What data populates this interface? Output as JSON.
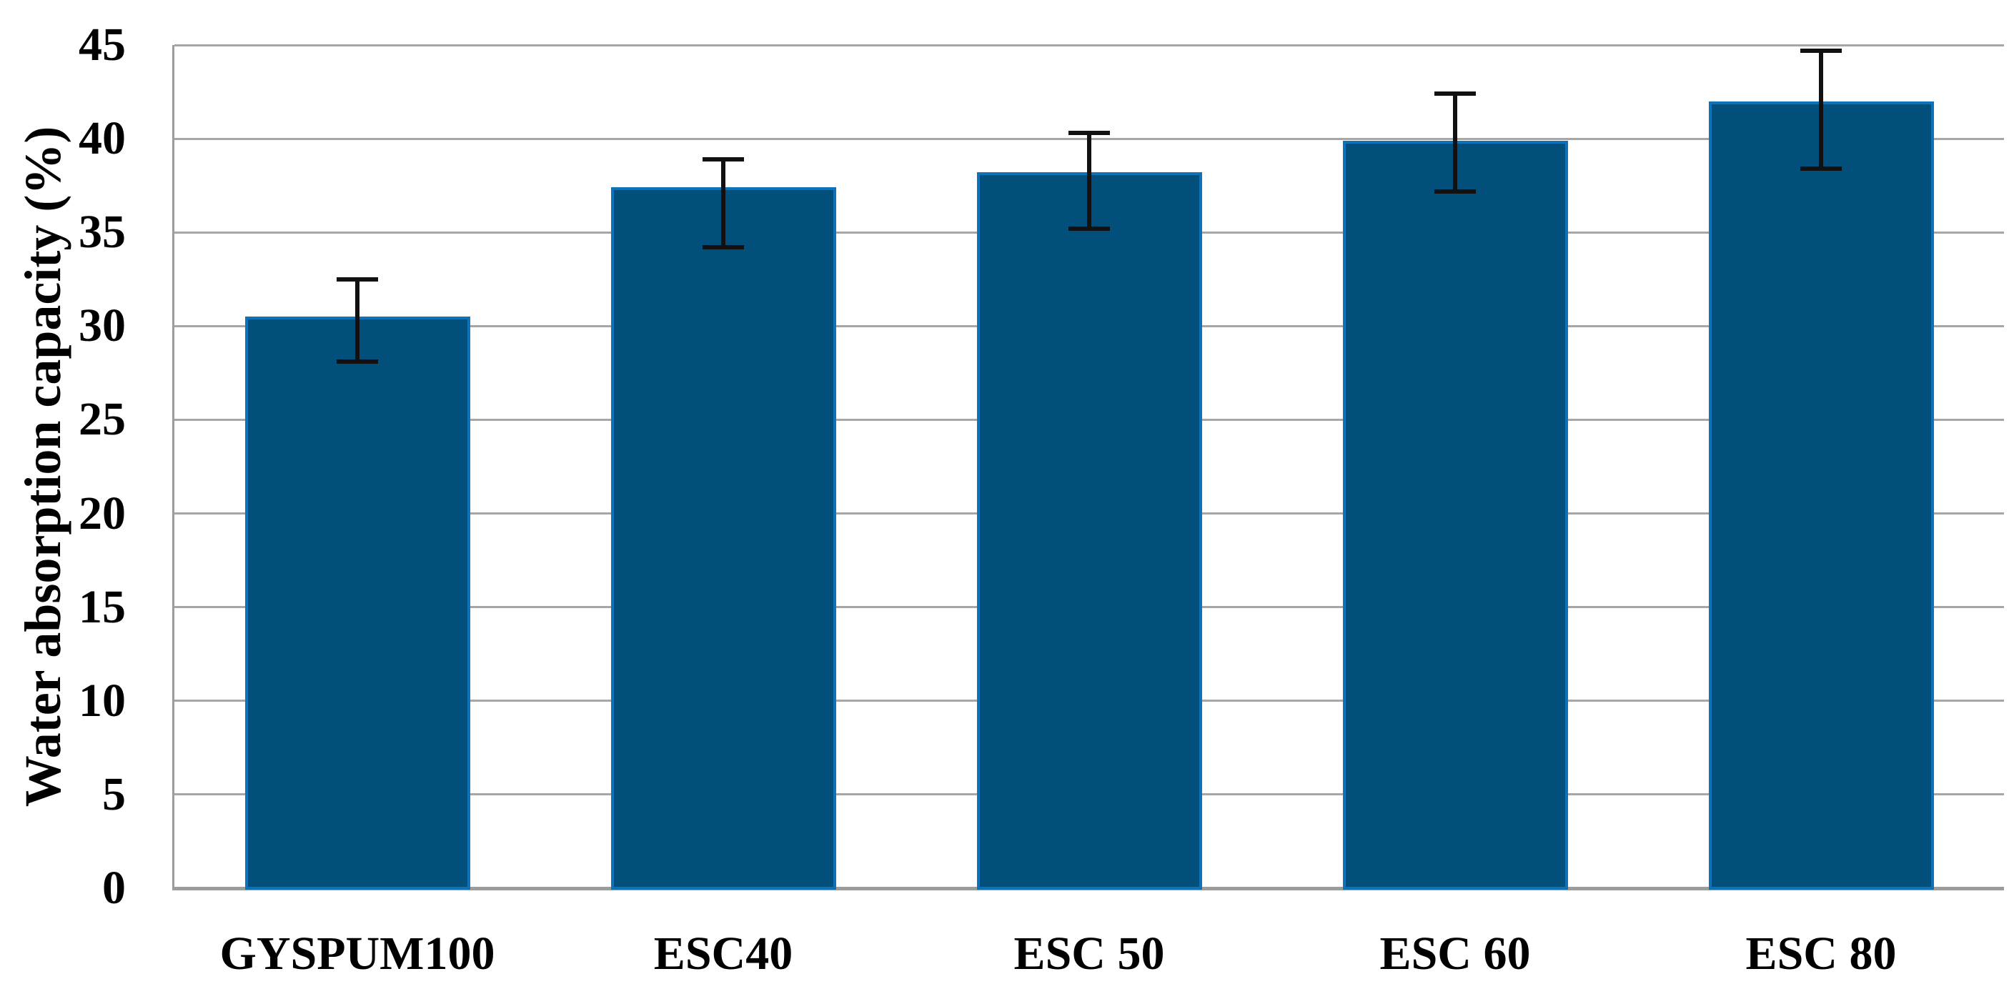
{
  "figure": {
    "background": "#FFFFFF"
  },
  "chart_data": {
    "type": "bar",
    "title": "",
    "xlabel": "",
    "ylabel": "Water absorption capacity (%)",
    "categories": [
      "GYSPUM100",
      "ESC40",
      "ESC 50",
      "ESC 60",
      "ESC 80"
    ],
    "values": [
      30.5,
      37.4,
      38.2,
      39.9,
      42.0
    ],
    "error_top": [
      32.5,
      38.9,
      40.3,
      42.4,
      44.7
    ],
    "error_bottom": [
      28.1,
      34.2,
      35.2,
      37.2,
      38.4
    ],
    "ylim": [
      0,
      45
    ],
    "yticks": [
      0,
      5,
      10,
      15,
      20,
      25,
      30,
      35,
      40,
      45
    ],
    "grid": "horizontal",
    "legend": "none",
    "colors": {
      "bar_fill": "#024F7C",
      "bar_border": "#0E72B8",
      "gridline": "#A6A6A6",
      "axis_line": "#9C9C9C",
      "error_bar": "#111111",
      "text": "#000000"
    }
  }
}
